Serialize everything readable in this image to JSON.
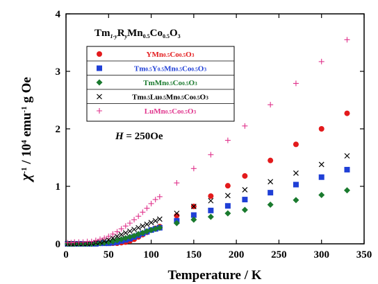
{
  "chart_data": {
    "type": "scatter",
    "x_label": "Temperature / K",
    "y_label": "χ⁻¹ / 10⁴ emu⁻¹ g Oe",
    "xlim": [
      0,
      350
    ],
    "ylim": [
      0,
      4
    ],
    "x_ticks": [
      0,
      50,
      100,
      150,
      200,
      250,
      300,
      350
    ],
    "y_ticks": [
      0,
      1,
      2,
      3,
      4
    ],
    "legend_title": {
      "main": "Tm",
      "sub1": "1-y",
      "mid": "R",
      "sub2": "y",
      "rest": "Mn",
      "sub3": "0.5",
      "rest2": "Co",
      "sub4": "0.5",
      "rest3": "O",
      "sub5": "3"
    },
    "legend_position": "top-left",
    "annotation": {
      "H": "H",
      "rest": " = 250Oe"
    },
    "series": [
      {
        "name": "YMn0.5Co0.5O3",
        "label_parts": [
          [
            "YMn",
            ""
          ],
          [
            "0.5",
            "sub"
          ],
          [
            "Co",
            ""
          ],
          [
            "0.5",
            "sub"
          ],
          [
            "O",
            ""
          ],
          [
            "3",
            "sub"
          ]
        ],
        "marker": "circle",
        "color": "#e31a1c",
        "x": [
          2,
          6,
          10,
          15,
          20,
          25,
          30,
          35,
          40,
          45,
          50,
          55,
          60,
          65,
          70,
          75,
          80,
          85,
          90,
          95,
          100,
          105,
          110,
          130,
          150,
          170,
          190,
          210,
          240,
          270,
          300,
          330
        ],
        "y": [
          0.0,
          0.0,
          0.0,
          0.0,
          0.0,
          0.0,
          0.0,
          0.01,
          0.01,
          0.01,
          0.01,
          0.01,
          0.01,
          0.02,
          0.03,
          0.05,
          0.08,
          0.12,
          0.16,
          0.2,
          0.24,
          0.27,
          0.3,
          0.49,
          0.65,
          0.83,
          1.01,
          1.18,
          1.45,
          1.73,
          2.0,
          2.27
        ]
      },
      {
        "name": "Tm0.5Y0.5Mn0.5Co0.5O3",
        "label_parts": [
          [
            "Tm",
            ""
          ],
          [
            "0.5",
            "sub"
          ],
          [
            "Y",
            ""
          ],
          [
            "0.5",
            "sub"
          ],
          [
            "Mn",
            ""
          ],
          [
            "0.5",
            "sub"
          ],
          [
            "Co",
            ""
          ],
          [
            "0.5",
            "sub"
          ],
          [
            "O",
            ""
          ],
          [
            "3",
            "sub"
          ]
        ],
        "marker": "square",
        "color": "#1f3fd6",
        "x": [
          2,
          6,
          10,
          15,
          20,
          25,
          30,
          35,
          40,
          45,
          50,
          55,
          60,
          65,
          70,
          75,
          80,
          85,
          90,
          95,
          100,
          105,
          110,
          130,
          150,
          170,
          190,
          210,
          240,
          270,
          300,
          330
        ],
        "y": [
          0.0,
          0.0,
          0.0,
          0.0,
          0.0,
          0.0,
          0.0,
          0.0,
          0.01,
          0.01,
          0.01,
          0.02,
          0.03,
          0.05,
          0.07,
          0.09,
          0.12,
          0.15,
          0.18,
          0.21,
          0.24,
          0.26,
          0.28,
          0.4,
          0.5,
          0.58,
          0.66,
          0.77,
          0.89,
          1.03,
          1.16,
          1.29
        ]
      },
      {
        "name": "TmMn0.5Co0.5O3",
        "label_parts": [
          [
            "TmMn",
            ""
          ],
          [
            "0.5",
            "sub"
          ],
          [
            "Co",
            ""
          ],
          [
            "0.5",
            "sub"
          ],
          [
            "O",
            ""
          ],
          [
            "3",
            "sub"
          ]
        ],
        "marker": "diamond",
        "color": "#1a7a2e",
        "x": [
          2,
          6,
          10,
          15,
          20,
          25,
          30,
          35,
          40,
          45,
          50,
          55,
          60,
          65,
          70,
          75,
          80,
          85,
          90,
          95,
          100,
          105,
          110,
          130,
          150,
          170,
          190,
          210,
          240,
          270,
          300,
          330
        ],
        "y": [
          0.0,
          0.0,
          0.0,
          0.0,
          0.0,
          0.0,
          0.0,
          0.01,
          0.01,
          0.02,
          0.03,
          0.04,
          0.06,
          0.08,
          0.1,
          0.12,
          0.14,
          0.17,
          0.19,
          0.22,
          0.24,
          0.26,
          0.28,
          0.36,
          0.42,
          0.47,
          0.53,
          0.59,
          0.68,
          0.76,
          0.85,
          0.93
        ]
      },
      {
        "name": "Tm0.5Lu0.5Mn0.5Co0.5O3",
        "label_parts": [
          [
            "Tm",
            ""
          ],
          [
            "0.5",
            "sub"
          ],
          [
            "Lu",
            ""
          ],
          [
            "0.5",
            "sub"
          ],
          [
            "Mn",
            ""
          ],
          [
            "0.5",
            "sub"
          ],
          [
            "Co",
            ""
          ],
          [
            "0.5",
            "sub"
          ],
          [
            "O",
            ""
          ],
          [
            "3",
            "sub"
          ]
        ],
        "marker": "x",
        "color": "#000000",
        "x": [
          2,
          6,
          10,
          15,
          20,
          25,
          30,
          35,
          40,
          45,
          50,
          55,
          60,
          65,
          70,
          75,
          80,
          85,
          90,
          95,
          100,
          105,
          110,
          130,
          150,
          170,
          190,
          210,
          240,
          270,
          300,
          330
        ],
        "y": [
          0.0,
          0.0,
          0.0,
          0.0,
          0.0,
          0.0,
          0.01,
          0.02,
          0.03,
          0.05,
          0.07,
          0.1,
          0.13,
          0.16,
          0.19,
          0.22,
          0.25,
          0.28,
          0.31,
          0.34,
          0.37,
          0.4,
          0.43,
          0.53,
          0.65,
          0.75,
          0.84,
          0.94,
          1.08,
          1.23,
          1.38,
          1.53
        ]
      },
      {
        "name": "LuMn0.5Co0.5O3",
        "label_parts": [
          [
            "LuMn",
            ""
          ],
          [
            "0.5",
            "sub"
          ],
          [
            "Co",
            ""
          ],
          [
            "0.5",
            "sub"
          ],
          [
            "O",
            ""
          ],
          [
            "3",
            "sub"
          ]
        ],
        "marker": "plus",
        "color": "#e0338c",
        "x": [
          2,
          6,
          10,
          15,
          20,
          25,
          30,
          35,
          40,
          45,
          50,
          55,
          60,
          65,
          70,
          75,
          80,
          85,
          90,
          95,
          100,
          105,
          110,
          130,
          150,
          170,
          190,
          210,
          240,
          270,
          300,
          330
        ],
        "y": [
          0.02,
          0.02,
          0.03,
          0.03,
          0.03,
          0.04,
          0.04,
          0.06,
          0.08,
          0.1,
          0.13,
          0.17,
          0.21,
          0.26,
          0.31,
          0.36,
          0.42,
          0.48,
          0.55,
          0.62,
          0.7,
          0.77,
          0.82,
          1.06,
          1.31,
          1.55,
          1.8,
          2.05,
          2.42,
          2.79,
          3.17,
          3.55
        ]
      }
    ]
  }
}
